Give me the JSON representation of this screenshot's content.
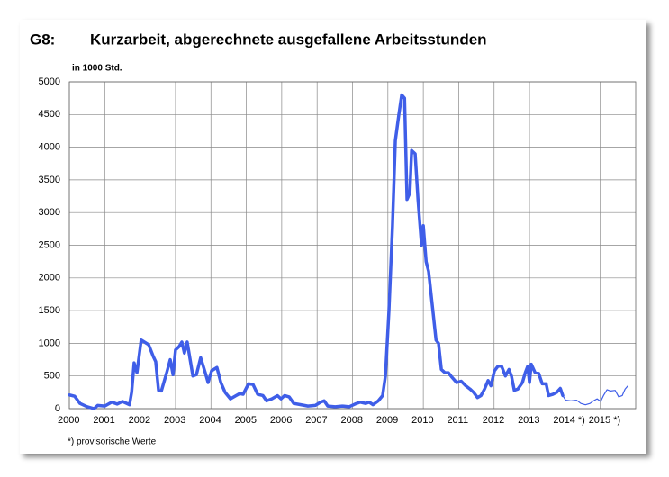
{
  "chart_data": {
    "type": "line",
    "label": "G8:",
    "title": "Kurzarbeit, abgerechnete ausgefallene Arbeitsstunden",
    "ylabel": "in 1000 Std.",
    "footnote": "*) provisorische Werte",
    "xlim": [
      2000,
      2016
    ],
    "xticks": [
      2000,
      2001,
      2002,
      2003,
      2004,
      2005,
      2006,
      2007,
      2008,
      2009,
      2010,
      2011,
      2012,
      2013,
      {
        "value": 2014,
        "label": "2014 *)"
      },
      {
        "value": 2015,
        "label": "2015 *)"
      }
    ],
    "ylim": [
      0,
      5000
    ],
    "yticks": [
      0,
      500,
      1000,
      1500,
      2000,
      2500,
      3000,
      3500,
      4000,
      4500,
      5000
    ],
    "grid": true,
    "series": [
      {
        "color": "#3f5ee8",
        "width": 3.5,
        "x": [
          2000.0,
          2000.15,
          2000.3,
          2000.5,
          2000.7,
          2000.8,
          2001.0,
          2001.2,
          2001.35,
          2001.5,
          2001.7,
          2001.76,
          2001.83,
          2001.91,
          2002.03,
          2002.24,
          2002.37,
          2002.44,
          2002.52,
          2002.6,
          2002.75,
          2002.85,
          2002.93,
          2003.0,
          2003.1,
          2003.18,
          2003.25,
          2003.33,
          2003.49,
          2003.59,
          2003.71,
          2003.84,
          2003.92,
          2004.02,
          2004.17,
          2004.28,
          2004.4,
          2004.55,
          2004.71,
          2004.81,
          2004.91,
          2005.06,
          2005.19,
          2005.32,
          2005.47,
          2005.57,
          2005.72,
          2005.88,
          2005.98,
          2006.08,
          2006.21,
          2006.34,
          2006.54,
          2006.74,
          2006.95,
          2007.1,
          2007.2,
          2007.3,
          2007.51,
          2007.71,
          2007.91,
          2008.07,
          2008.22,
          2008.37,
          2008.47,
          2008.58,
          2008.73,
          2008.85,
          2008.93,
          2009.03,
          2009.13,
          2009.21,
          2009.31,
          2009.39,
          2009.47,
          2009.54,
          2009.62,
          2009.67,
          2009.77,
          2009.85,
          2009.95,
          2010.0,
          2010.08,
          2010.15,
          2010.25,
          2010.36,
          2010.43,
          2010.51,
          2010.61,
          2010.71,
          2010.81,
          2010.94,
          2011.07,
          2011.2,
          2011.32,
          2011.42,
          2011.53,
          2011.63,
          2011.73,
          2011.83,
          2011.91,
          2012.01,
          2012.11,
          2012.21,
          2012.32,
          2012.42,
          2012.49,
          2012.57,
          2012.67,
          2012.8,
          2012.88,
          2012.95,
          2013.0,
          2013.05,
          2013.16,
          2013.26,
          2013.36,
          2013.47,
          2013.54,
          2013.66,
          2013.77,
          2013.87,
          2013.94
        ],
        "values": [
          210,
          190,
          80,
          30,
          0,
          50,
          40,
          100,
          70,
          110,
          60,
          250,
          700,
          550,
          1050,
          980,
          800,
          720,
          280,
          270,
          550,
          750,
          520,
          900,
          950,
          1020,
          850,
          1020,
          500,
          520,
          780,
          550,
          400,
          580,
          630,
          400,
          250,
          150,
          200,
          230,
          220,
          380,
          370,
          220,
          200,
          120,
          150,
          200,
          150,
          200,
          180,
          80,
          60,
          40,
          50,
          100,
          120,
          40,
          30,
          40,
          30,
          70,
          100,
          80,
          100,
          60,
          120,
          200,
          500,
          1500,
          2800,
          4100,
          4500,
          4800,
          4750,
          3200,
          3300,
          3950,
          3900,
          3200,
          2500,
          2800,
          2250,
          2100,
          1600,
          1050,
          1000,
          600,
          550,
          550,
          480,
          400,
          420,
          350,
          300,
          250,
          170,
          200,
          300,
          430,
          350,
          580,
          650,
          650,
          500,
          600,
          500,
          280,
          300,
          400,
          550,
          650,
          400,
          680,
          550,
          540,
          380,
          380,
          200,
          220,
          250,
          310,
          200
        ]
      },
      {
        "color": "#3f5ee8",
        "width": 1.2,
        "x": [
          2013.94,
          2014.02,
          2014.17,
          2014.33,
          2014.45,
          2014.58,
          2014.71,
          2014.81,
          2014.91,
          2015.01,
          2015.09,
          2015.19,
          2015.29,
          2015.42,
          2015.52,
          2015.62,
          2015.7,
          2015.78
        ],
        "values": [
          200,
          130,
          120,
          130,
          80,
          60,
          80,
          120,
          150,
          110,
          200,
          290,
          270,
          280,
          180,
          200,
          300,
          350
        ]
      }
    ]
  }
}
